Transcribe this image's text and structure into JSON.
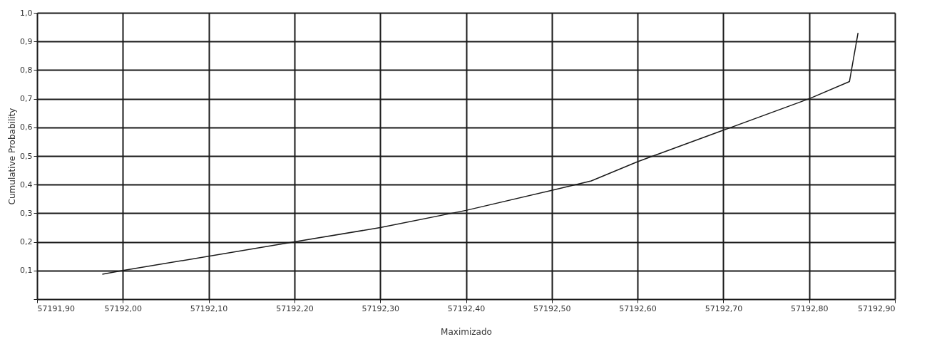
{
  "chart_data": {
    "type": "line",
    "xlabel": "Maximizado",
    "ylabel": "Cumulative Probability",
    "x": [
      57191.976,
      57192.0,
      57192.2,
      57192.3,
      57192.4,
      57192.5,
      57192.546,
      57192.6,
      57192.7,
      57192.8,
      57192.847,
      57192.857
    ],
    "series": [
      {
        "color": "#1a1a1a",
        "values": [
          0.087,
          0.1,
          0.2,
          0.25,
          0.31,
          0.38,
          0.413,
          0.48,
          0.59,
          0.7,
          0.76,
          0.93
        ]
      }
    ],
    "xlim": [
      57191.9,
      57192.9
    ],
    "xticks": [
      {
        "value": 57191.9,
        "label": "57191,90"
      },
      {
        "value": 57192.0,
        "label": "57192,00"
      },
      {
        "value": 57192.1,
        "label": "57192,10"
      },
      {
        "value": 57192.2,
        "label": "57192,20"
      },
      {
        "value": 57192.3,
        "label": "57192,30"
      },
      {
        "value": 57192.4,
        "label": "57192,40"
      },
      {
        "value": 57192.5,
        "label": "57192,50"
      },
      {
        "value": 57192.6,
        "label": "57192,60"
      },
      {
        "value": 57192.7,
        "label": "57192,70"
      },
      {
        "value": 57192.8,
        "label": "57192,80"
      },
      {
        "value": 57192.9,
        "label": "57192,90"
      }
    ],
    "ylim": [
      0,
      1
    ],
    "yticks": [
      {
        "value": 0,
        "label": null
      },
      {
        "value": 0.1,
        "label": "0,1"
      },
      {
        "value": 0.2,
        "label": "0,2"
      },
      {
        "value": 0.3,
        "label": "0,3"
      },
      {
        "value": 0.4,
        "label": "0,4"
      },
      {
        "value": 0.5,
        "label": "0,5"
      },
      {
        "value": 0.6,
        "label": "0,6"
      },
      {
        "value": 0.7,
        "label": "0,7"
      },
      {
        "value": 0.8,
        "label": "0,8"
      },
      {
        "value": 0.9,
        "label": "0,9"
      },
      {
        "value": 1.0,
        "label": "1,0"
      }
    ],
    "grid": true,
    "legend": false,
    "marker": "none",
    "line_style": "solid"
  }
}
